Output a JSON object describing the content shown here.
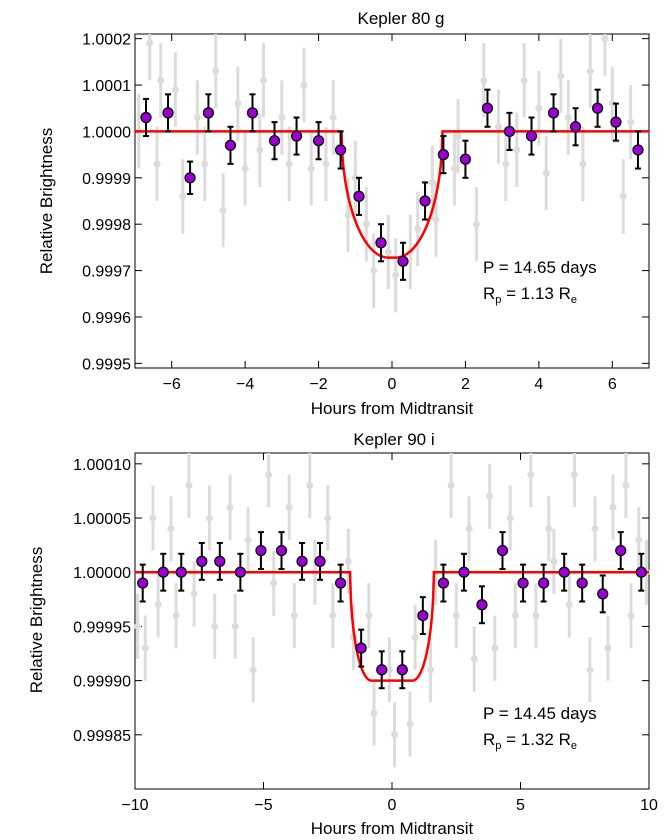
{
  "chart_data": [
    {
      "type": "scatter",
      "title": "Kepler 80 g",
      "xlabel": "Hours from Midtransit",
      "ylabel": "Relative Brightness",
      "xlim": [
        -7,
        7
      ],
      "ylim": [
        0.99949,
        1.00021
      ],
      "x_ticks": [
        -6,
        -4,
        -2,
        0,
        2,
        4,
        6
      ],
      "x_tick_labels": [
        "−6",
        "−4",
        "−2",
        "0",
        "2",
        "4",
        "6"
      ],
      "y_ticks": [
        0.9995,
        0.9996,
        0.9997,
        0.9998,
        0.9999,
        1.0,
        1.0001,
        1.0002
      ],
      "y_tick_labels": [
        "0.9995",
        "0.9996",
        "0.9997",
        "0.9998",
        "0.9999",
        "1.0000",
        "1.0001",
        "1.0002"
      ],
      "annotation": {
        "period": "P = 14.65 days",
        "radius_prefix": "R",
        "radius_sub": "p",
        "radius_mid": " = 1.13 R",
        "radius_sub2": "e"
      },
      "model": {
        "baseline": 1.0,
        "depth": 0.000272,
        "t_total": 2.75,
        "t_flat": 0.2,
        "color": "#ff0000"
      },
      "series": [
        {
          "role": "binned",
          "color": "#9b00d3",
          "x": [
            -6.7,
            -6.1,
            -5.5,
            -5.0,
            -4.4,
            -3.8,
            -3.2,
            -2.6,
            -2.0,
            -1.4,
            -0.9,
            -0.3,
            0.3,
            0.9,
            1.4,
            2.0,
            2.6,
            3.2,
            3.8,
            4.4,
            5.0,
            5.6,
            6.1,
            6.7
          ],
          "y": [
            1.00003,
            1.00004,
            0.9999,
            1.00004,
            0.99997,
            1.00004,
            0.99998,
            0.99999,
            0.99998,
            0.99996,
            0.99986,
            0.99976,
            0.99972,
            0.99985,
            0.99995,
            0.99994,
            1.00005,
            1.0,
            0.99999,
            1.00004,
            1.00001,
            1.00005,
            1.00002,
            0.99996
          ],
          "err": [
            4e-05,
            4e-05,
            3.5e-05,
            4e-05,
            4e-05,
            4e-05,
            4e-05,
            4e-05,
            4e-05,
            4e-05,
            4e-05,
            4e-05,
            4e-05,
            4e-05,
            4e-05,
            4e-05,
            4e-05,
            4e-05,
            4e-05,
            4e-05,
            4e-05,
            4e-05,
            4e-05,
            4e-05
          ]
        },
        {
          "role": "unbinned",
          "color": "#dcdcdc",
          "x": [
            -6.9,
            -6.6,
            -6.4,
            -6.3,
            -5.9,
            -5.7,
            -5.3,
            -5.1,
            -4.8,
            -4.6,
            -4.2,
            -4.0,
            -3.6,
            -3.5,
            -3.0,
            -2.8,
            -2.4,
            -2.2,
            -1.8,
            -1.6,
            -1.2,
            -1.0,
            -0.7,
            -0.5,
            -0.1,
            0.1,
            0.5,
            0.7,
            1.1,
            1.2,
            1.7,
            1.8,
            2.3,
            2.5,
            2.9,
            3.1,
            3.4,
            3.6,
            4.0,
            4.2,
            4.6,
            4.8,
            5.2,
            5.4,
            5.8,
            6.0,
            6.3,
            6.5
          ],
          "y": [
            1.0,
            1.00019,
            0.99993,
            1.00011,
            1.00009,
            0.99986,
            1.00003,
            0.99993,
            1.00013,
            0.99983,
            1.00006,
            0.99992,
            0.99996,
            1.00011,
            1.00003,
            0.99993,
            1.0001,
            0.99992,
            0.99993,
            1.00003,
            0.99982,
            0.9999,
            0.9998,
            0.9997,
            0.99974,
            0.99969,
            0.99974,
            0.99979,
            0.99989,
            0.99981,
            0.99992,
            0.99999,
            0.9998,
            1.00011,
            1.00001,
            0.99993,
            0.99996,
            1.00011,
            1.00005,
            0.99991,
            1.00012,
            1.00003,
            0.99993,
            1.00013,
            1.0002,
            1.00006,
            0.99986,
            1.00002
          ],
          "err": [
            8e-05,
            8e-05,
            8e-05,
            8e-05,
            8e-05,
            8e-05,
            8e-05,
            8e-05,
            8e-05,
            8e-05,
            8e-05,
            8e-05,
            8e-05,
            8e-05,
            8e-05,
            8e-05,
            8e-05,
            8e-05,
            8e-05,
            8e-05,
            8e-05,
            8e-05,
            8e-05,
            8e-05,
            8e-05,
            8e-05,
            8e-05,
            8e-05,
            8e-05,
            8e-05,
            8e-05,
            8e-05,
            8e-05,
            8e-05,
            8e-05,
            8e-05,
            8e-05,
            8e-05,
            8e-05,
            8e-05,
            8e-05,
            8e-05,
            8e-05,
            8e-05,
            8e-05,
            8e-05,
            8e-05,
            8e-05
          ]
        }
      ]
    },
    {
      "type": "scatter",
      "title": "Kepler 90 i",
      "xlabel": "Hours from Midtransit",
      "ylabel": "Relative Brightness",
      "xlim": [
        -10,
        10
      ],
      "ylim": [
        0.9998,
        1.00011
      ],
      "x_ticks": [
        -10,
        -5,
        0,
        5,
        10
      ],
      "x_tick_labels": [
        "−10",
        "−5",
        "0",
        "5",
        "10"
      ],
      "y_ticks": [
        0.99985,
        0.9999,
        0.99995,
        1.0,
        1.00005,
        1.0001
      ],
      "y_tick_labels": [
        "0.99985",
        "0.99990",
        "0.99995",
        "1.00000",
        "1.00005",
        "1.00010"
      ],
      "annotation": {
        "period": "P = 14.45 days",
        "radius_prefix": "R",
        "radius_sub": "p",
        "radius_mid": " = 1.32 R",
        "radius_sub2": "e"
      },
      "model": {
        "baseline": 1.0,
        "depth": 0.0001,
        "t_total": 3.25,
        "t_flat": 1.6,
        "color": "#ff0000"
      },
      "series": [
        {
          "role": "binned",
          "color": "#9b00d3",
          "x": [
            -9.7,
            -8.9,
            -8.2,
            -7.4,
            -6.7,
            -5.9,
            -5.1,
            -4.3,
            -3.5,
            -2.8,
            -2.0,
            -1.2,
            -0.4,
            0.4,
            1.2,
            2.0,
            2.8,
            3.5,
            4.3,
            5.1,
            5.9,
            6.7,
            7.4,
            8.2,
            8.9,
            9.7
          ],
          "y": [
            0.99999,
            1.0,
            1.0,
            1.00001,
            1.00001,
            1.0,
            1.00002,
            1.00002,
            1.00001,
            1.00001,
            0.99999,
            0.99993,
            0.99991,
            0.99991,
            0.99996,
            0.99999,
            1.0,
            0.99997,
            1.00002,
            0.99999,
            0.99999,
            1.0,
            0.99999,
            0.99998,
            1.00002,
            1.0
          ],
          "err": [
            1.7e-05,
            1.7e-05,
            1.7e-05,
            1.7e-05,
            1.7e-05,
            1.7e-05,
            1.7e-05,
            1.7e-05,
            1.7e-05,
            1.7e-05,
            1.7e-05,
            1.7e-05,
            1.7e-05,
            1.7e-05,
            1.7e-05,
            1.7e-05,
            1.7e-05,
            1.7e-05,
            1.7e-05,
            1.7e-05,
            1.7e-05,
            1.7e-05,
            1.7e-05,
            1.7e-05,
            1.7e-05,
            1.7e-05
          ]
        },
        {
          "role": "unbinned",
          "color": "#dcdcdc",
          "x": [
            -9.9,
            -9.6,
            -9.3,
            -9.1,
            -8.6,
            -8.4,
            -7.9,
            -7.7,
            -7.1,
            -6.9,
            -6.3,
            -6.1,
            -5.6,
            -5.4,
            -4.8,
            -4.6,
            -4.0,
            -3.8,
            -3.2,
            -3.0,
            -2.5,
            -2.3,
            -1.7,
            -1.5,
            -0.9,
            -0.7,
            -0.1,
            0.1,
            0.7,
            0.9,
            1.5,
            1.7,
            2.3,
            2.5,
            3.0,
            3.2,
            3.8,
            4.0,
            4.6,
            4.8,
            5.4,
            5.6,
            6.1,
            6.3,
            6.9,
            7.1,
            7.7,
            7.9,
            8.4,
            8.6,
            9.1,
            9.3,
            9.6,
            9.9
          ],
          "y": [
            0.99995,
            0.99993,
            1.00005,
            0.99997,
            1.00004,
            0.99996,
            1.00008,
            0.99998,
            1.00005,
            0.99995,
            1.00006,
            0.99995,
            1.00003,
            0.99991,
            1.00009,
            0.99999,
            1.00006,
            0.99996,
            1.00008,
            1.0,
            1.00005,
            0.99996,
            1.00001,
            0.99994,
            0.99996,
            0.99987,
            0.99991,
            0.99985,
            0.99986,
            0.99994,
            0.99991,
            1.0,
            1.00008,
            0.99996,
            1.00004,
            0.99992,
            1.00007,
            0.99993,
            1.00005,
            0.99996,
            1.00009,
            0.99996,
            1.00004,
            1.00001,
            0.99997,
            1.00009,
            0.99991,
            1.00004,
            0.99993,
            1.00006,
            1.00008,
            0.99996,
            1.00003,
            1.0
          ],
          "err": [
            3e-05,
            3e-05,
            3e-05,
            3e-05,
            3e-05,
            3e-05,
            3e-05,
            3e-05,
            3e-05,
            3e-05,
            3e-05,
            3e-05,
            3e-05,
            3e-05,
            3e-05,
            3e-05,
            3e-05,
            3e-05,
            3e-05,
            3e-05,
            3e-05,
            3e-05,
            3e-05,
            3e-05,
            3e-05,
            3e-05,
            3e-05,
            3e-05,
            3e-05,
            3e-05,
            3e-05,
            3e-05,
            3e-05,
            3e-05,
            3e-05,
            3e-05,
            3e-05,
            3e-05,
            3e-05,
            3e-05,
            3e-05,
            3e-05,
            3e-05,
            3e-05,
            3e-05,
            3e-05,
            3e-05,
            3e-05,
            3e-05,
            3e-05,
            3e-05,
            3e-05,
            3e-05,
            3e-05
          ]
        }
      ]
    }
  ]
}
